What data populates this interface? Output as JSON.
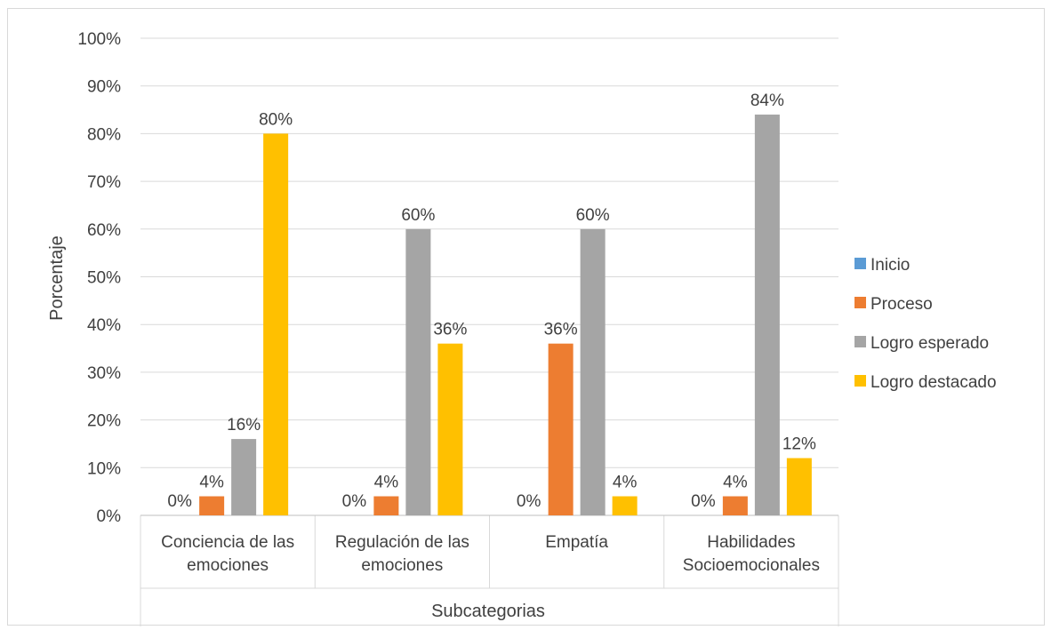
{
  "chart_data": {
    "type": "bar",
    "categories": [
      [
        "Conciencia de las",
        "emociones"
      ],
      [
        "Regulación de las",
        "emociones"
      ],
      [
        "Empatía"
      ],
      [
        "Habilidades",
        "Socioemocionales"
      ]
    ],
    "series": [
      {
        "name": "Inicio",
        "color": "#5b9bd5",
        "values": [
          0,
          0,
          0,
          0
        ],
        "labels": [
          "0%",
          "0%",
          "0%",
          "0%"
        ]
      },
      {
        "name": "Proceso",
        "color": "#ed7d31",
        "values": [
          4,
          4,
          36,
          4
        ],
        "labels": [
          "4%",
          "4%",
          "36%",
          "4%"
        ]
      },
      {
        "name": "Logro esperado",
        "color": "#a5a5a5",
        "values": [
          16,
          60,
          60,
          84
        ],
        "labels": [
          "16%",
          "60%",
          "60%",
          "84%"
        ]
      },
      {
        "name": "Logro destacado",
        "color": "#ffc000",
        "values": [
          80,
          36,
          4,
          12
        ],
        "labels": [
          "80%",
          "36%",
          "4%",
          "12%"
        ]
      }
    ],
    "ylim": [
      0,
      100
    ],
    "yticks": [
      "0%",
      "10%",
      "20%",
      "30%",
      "40%",
      "50%",
      "60%",
      "70%",
      "80%",
      "90%",
      "100%"
    ],
    "ylabel": "Porcentaje",
    "xlabel": "Subcategorias",
    "grid": true,
    "legend_position": "right"
  }
}
